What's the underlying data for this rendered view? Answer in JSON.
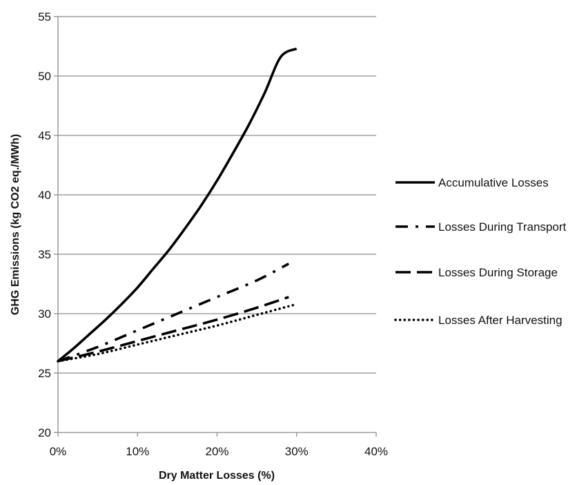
{
  "chart_data": {
    "type": "line",
    "title": "",
    "xlabel": "Dry Matter Losses (%)",
    "ylabel": "GHG Emissions (kg CO2 eq./MWh)",
    "xlim": [
      0,
      40
    ],
    "ylim": [
      20,
      55
    ],
    "x_ticks": [
      {
        "value": 0,
        "label": "0%"
      },
      {
        "value": 10,
        "label": "10%"
      },
      {
        "value": 20,
        "label": "20%"
      },
      {
        "value": 30,
        "label": "30%"
      },
      {
        "value": 40,
        "label": "40%"
      }
    ],
    "y_ticks": [
      {
        "value": 20,
        "label": "20"
      },
      {
        "value": 25,
        "label": "25"
      },
      {
        "value": 30,
        "label": "30"
      },
      {
        "value": 35,
        "label": "35"
      },
      {
        "value": 40,
        "label": "40"
      },
      {
        "value": 45,
        "label": "45"
      },
      {
        "value": 50,
        "label": "50"
      },
      {
        "value": 55,
        "label": "55"
      }
    ],
    "grid": "horizontal",
    "legend_position": "right",
    "series": [
      {
        "name": "Accumulative Losses",
        "style": "solid",
        "color": "#000000",
        "x": [
          0,
          2,
          4,
          6,
          8,
          10,
          12,
          14,
          16,
          18,
          20,
          22,
          24,
          26,
          28,
          30
        ],
        "y": [
          26.0,
          27.1,
          28.3,
          29.5,
          30.8,
          32.2,
          33.8,
          35.4,
          37.2,
          39.1,
          41.2,
          43.5,
          45.9,
          48.6,
          51.6,
          52.3
        ]
      },
      {
        "name": "Losses During Transport",
        "style": "dash-dot",
        "color": "#000000",
        "x": [
          0,
          5,
          10,
          15,
          20,
          25,
          29
        ],
        "y": [
          26.0,
          27.2,
          28.6,
          30.0,
          31.4,
          32.8,
          34.2
        ]
      },
      {
        "name": "Losses During Storage",
        "style": "dash",
        "color": "#000000",
        "x": [
          0,
          5,
          10,
          15,
          20,
          25,
          29
        ],
        "y": [
          26.0,
          26.8,
          27.7,
          28.6,
          29.5,
          30.5,
          31.4
        ]
      },
      {
        "name": "Losses After Harvesting",
        "style": "dot",
        "color": "#000000",
        "x": [
          0,
          5,
          10,
          15,
          20,
          25,
          30
        ],
        "y": [
          26.0,
          26.6,
          27.4,
          28.2,
          29.0,
          29.9,
          30.8
        ]
      }
    ]
  }
}
